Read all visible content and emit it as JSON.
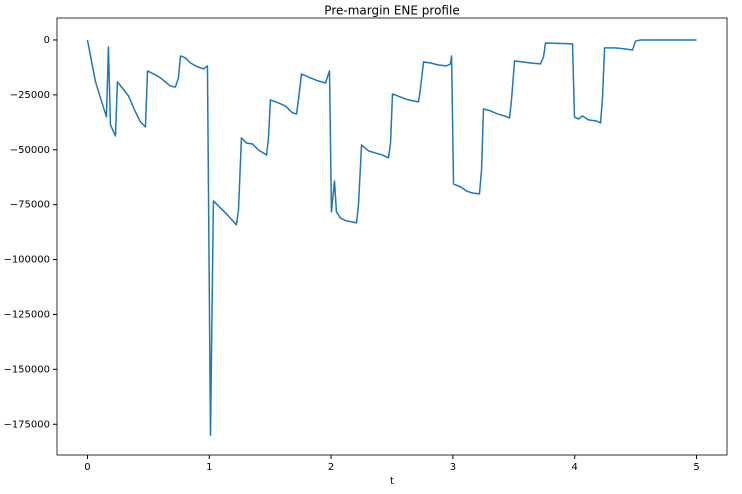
{
  "chart_data": {
    "type": "line",
    "title": "Pre-margin ENE profile",
    "x_label": "t",
    "x": [
      0,
      0.066,
      0.107,
      0.156,
      0.172,
      0.189,
      0.23,
      0.246,
      0.312,
      0.337,
      0.394,
      0.435,
      0.476,
      0.493,
      0.558,
      0.6,
      0.64,
      0.68,
      0.722,
      0.747,
      0.764,
      0.805,
      0.846,
      0.887,
      0.952,
      0.985,
      1.01,
      1.034,
      1.092,
      1.158,
      1.223,
      1.24,
      1.264,
      1.305,
      1.355,
      1.404,
      1.47,
      1.486,
      1.502,
      1.568,
      1.626,
      1.683,
      1.716,
      1.732,
      1.757,
      1.831,
      1.897,
      1.954,
      1.987,
      2.003,
      2.028,
      2.044,
      2.077,
      2.126,
      2.176,
      2.209,
      2.225,
      2.25,
      2.307,
      2.365,
      2.422,
      2.471,
      2.488,
      2.504,
      2.57,
      2.635,
      2.718,
      2.734,
      2.759,
      2.816,
      2.882,
      2.947,
      2.98,
      2.989,
      3.005,
      3.062,
      3.112,
      3.161,
      3.218,
      3.235,
      3.251,
      3.309,
      3.366,
      3.424,
      3.465,
      3.481,
      3.506,
      3.571,
      3.637,
      3.719,
      3.744,
      3.76,
      3.982,
      3.998,
      4.031,
      4.064,
      4.113,
      4.179,
      4.212,
      4.228,
      4.245,
      4.335,
      4.417,
      4.475,
      4.499,
      4.54,
      5.0
    ],
    "series": [
      {
        "name": "ENE",
        "color": "#1f77b4",
        "values": [
          0,
          -19000,
          -26400,
          -35000,
          -3200,
          -38700,
          -43700,
          -19100,
          -23700,
          -25500,
          -32800,
          -37300,
          -39600,
          -14100,
          -15900,
          -17300,
          -19100,
          -21000,
          -21400,
          -17300,
          -7300,
          -8200,
          -10500,
          -11800,
          -13200,
          -11800,
          -180000,
          -73300,
          -76500,
          -80200,
          -84200,
          -77400,
          -44600,
          -46900,
          -47400,
          -50100,
          -52400,
          -44600,
          -27300,
          -28700,
          -30100,
          -33200,
          -33700,
          -27300,
          -15500,
          -17300,
          -18700,
          -19600,
          -14100,
          -78300,
          -64200,
          -78300,
          -81100,
          -82400,
          -82900,
          -83300,
          -75100,
          -47800,
          -50500,
          -51500,
          -52400,
          -53700,
          -46900,
          -24600,
          -26000,
          -27300,
          -28200,
          -21900,
          -10000,
          -10500,
          -11400,
          -11800,
          -10900,
          -7300,
          -65600,
          -66900,
          -68800,
          -69700,
          -70100,
          -59200,
          -31400,
          -32300,
          -33700,
          -34600,
          -35500,
          -27300,
          -9600,
          -10000,
          -10500,
          -10900,
          -7700,
          -1400,
          -1800,
          -35100,
          -36000,
          -34600,
          -36400,
          -36900,
          -37800,
          -26400,
          -3600,
          -3600,
          -4100,
          -4600,
          -500,
          0,
          0
        ]
      }
    ],
    "xlim": [
      -0.25,
      5.25
    ],
    "xticks": [
      0,
      1,
      2,
      3,
      4,
      5
    ],
    "ylim": [
      -189000,
      10000
    ],
    "yticks": [
      0,
      {
        "value": -25000,
        "label": "−25000"
      },
      {
        "value": -50000,
        "label": "−50000"
      },
      {
        "value": -75000,
        "label": "−75000"
      },
      {
        "value": -100000,
        "label": "−100000"
      },
      {
        "value": -125000,
        "label": "−125000"
      },
      {
        "value": -150000,
        "label": "−150000"
      },
      {
        "value": -175000,
        "label": "−175000"
      }
    ],
    "grid": false
  }
}
